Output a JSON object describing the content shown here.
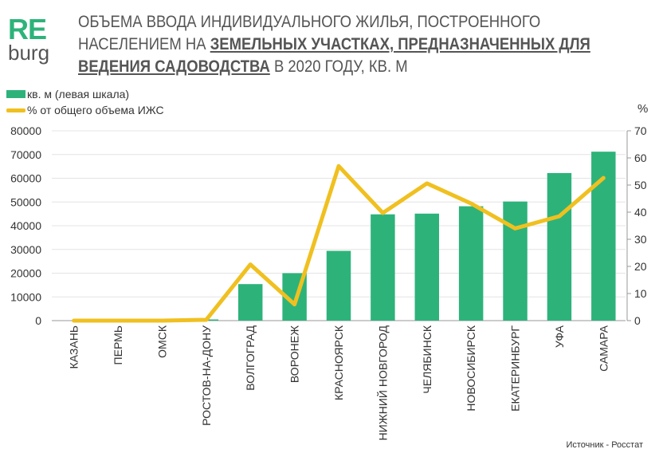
{
  "logo": {
    "line1": "RE",
    "line2": "burg"
  },
  "title": {
    "part1": "ОБЪЕМА ВВОДА ИНДИВИДУАЛЬНОГО ЖИЛЬЯ, ПОСТРОЕННОГО НАСЕЛЕНИЕМ НА ",
    "part2": "ЗЕМЕЛЬНЫХ УЧАСТКАХ, ПРЕДНАЗНАЧЕННЫХ ДЛЯ ВЕДЕНИЯ САДОВОДСТВА",
    "part3": " В 2020 ГОДУ, КВ. М"
  },
  "source": "Источник - Росстат",
  "chart_data": {
    "type": "bar+line",
    "categories": [
      "КАЗАНЬ",
      "ПЕРМЬ",
      "ОМСК",
      "РОСТОВ-НА-ДОНУ",
      "ВОЛГОГРАД",
      "ВОРОНЕЖ",
      "КРАСНОЯРСК",
      "НИЖНИЙ НОВГОРОД",
      "ЧЕЛЯБИНСК",
      "НОВОСИБИРСК",
      "ЕКАТЕРИНБУРГ",
      "УФА",
      "САМАРА"
    ],
    "series": [
      {
        "name": "кв. м (левая шкала)",
        "type": "bar",
        "axis": "left",
        "color": "#2db37a",
        "values": [
          0,
          0,
          0,
          500,
          15400,
          20000,
          29400,
          44800,
          45100,
          48200,
          50200,
          62200,
          71200
        ]
      },
      {
        "name": "% от общего объема ИЖС",
        "type": "line",
        "axis": "right",
        "color": "#f0c020",
        "values": [
          0,
          0,
          0,
          0.3,
          20.7,
          6,
          57,
          39.7,
          50.6,
          43.2,
          34,
          38.5,
          52.6
        ]
      }
    ],
    "left_axis": {
      "ylim": [
        0,
        80000
      ],
      "ticks": [
        0,
        10000,
        20000,
        30000,
        40000,
        50000,
        60000,
        70000,
        80000
      ]
    },
    "right_axis": {
      "label": "%",
      "ylim": [
        0,
        70
      ],
      "ticks": [
        0,
        10,
        20,
        30,
        40,
        50,
        60,
        70
      ]
    },
    "grid": true,
    "legend": "top-left"
  }
}
